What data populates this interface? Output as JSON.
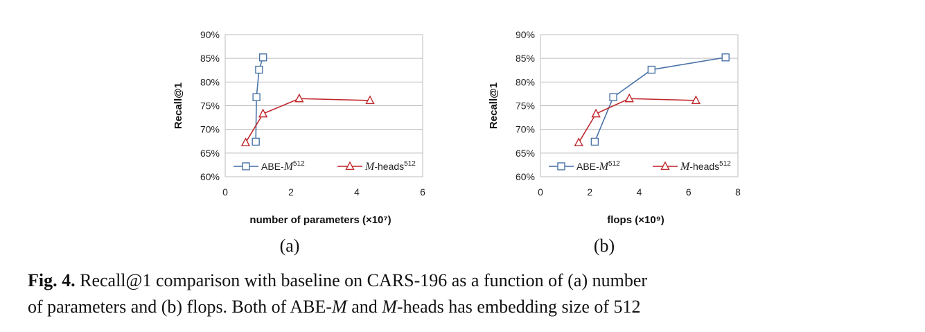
{
  "chart_data": [
    {
      "type": "line",
      "panel": "(a)",
      "title": "",
      "xlabel": "number of parameters (×10⁷)",
      "ylabel": "Recall@1",
      "xlim": [
        0,
        6
      ],
      "ylim": [
        60,
        90
      ],
      "xticks": [
        0,
        2,
        4,
        6
      ],
      "yticks": [
        "60%",
        "65%",
        "70%",
        "75%",
        "80%",
        "85%",
        "90%"
      ],
      "ytick_values": [
        60,
        65,
        70,
        75,
        80,
        85,
        90
      ],
      "grid": "horizontal",
      "legend_position": "bottom",
      "series": [
        {
          "name": "ABE-M512",
          "label_prefix": "ABE-",
          "label_ital": "M",
          "label_sup": "512",
          "label_suffix": "",
          "color": "#4a73a8",
          "marker": "square",
          "x": [
            0.93,
            0.95,
            1.03,
            1.15
          ],
          "y": [
            67.4,
            76.8,
            82.6,
            85.2
          ]
        },
        {
          "name": "M-heads512",
          "label_prefix": "",
          "label_ital": "M",
          "label_sup": "512",
          "label_suffix": "-heads",
          "color": "#c0282d",
          "marker": "triangle",
          "x": [
            0.62,
            1.15,
            2.25,
            4.4
          ],
          "y": [
            67.2,
            73.3,
            76.5,
            76.1
          ]
        }
      ]
    },
    {
      "type": "line",
      "panel": "(b)",
      "title": "",
      "xlabel": "flops (×10⁹)",
      "ylabel": "Recall@1",
      "xlim": [
        0,
        8
      ],
      "ylim": [
        60,
        90
      ],
      "xticks": [
        0,
        2,
        4,
        6,
        8
      ],
      "yticks": [
        "60%",
        "65%",
        "70%",
        "75%",
        "80%",
        "85%",
        "90%"
      ],
      "ytick_values": [
        60,
        65,
        70,
        75,
        80,
        85,
        90
      ],
      "grid": "horizontal",
      "legend_position": "bottom",
      "series": [
        {
          "name": "ABE-M512",
          "label_prefix": "ABE-",
          "label_ital": "M",
          "label_sup": "512",
          "label_suffix": "",
          "color": "#4a73a8",
          "marker": "square",
          "x": [
            2.2,
            2.95,
            4.5,
            7.5
          ],
          "y": [
            67.4,
            76.8,
            82.6,
            85.2
          ]
        },
        {
          "name": "M-heads512",
          "label_prefix": "",
          "label_ital": "M",
          "label_sup": "512",
          "label_suffix": "-heads",
          "color": "#c0282d",
          "marker": "triangle",
          "x": [
            1.55,
            2.25,
            3.6,
            6.3
          ],
          "y": [
            67.2,
            73.3,
            76.5,
            76.1
          ]
        }
      ]
    }
  ],
  "panel_labels": {
    "a": "(a)",
    "b": "(b)"
  },
  "caption": {
    "fig_label": "Fig. 4.",
    "line1": " Recall@1 comparison with baseline on CARS-196 as a function of (a) number",
    "line2_part1": "of parameters and (b) flops. Both of ABE-",
    "line2_ital1": "M",
    "line2_part2": " and ",
    "line2_ital2": "M",
    "line2_part3": "-heads has embedding size of 512"
  }
}
